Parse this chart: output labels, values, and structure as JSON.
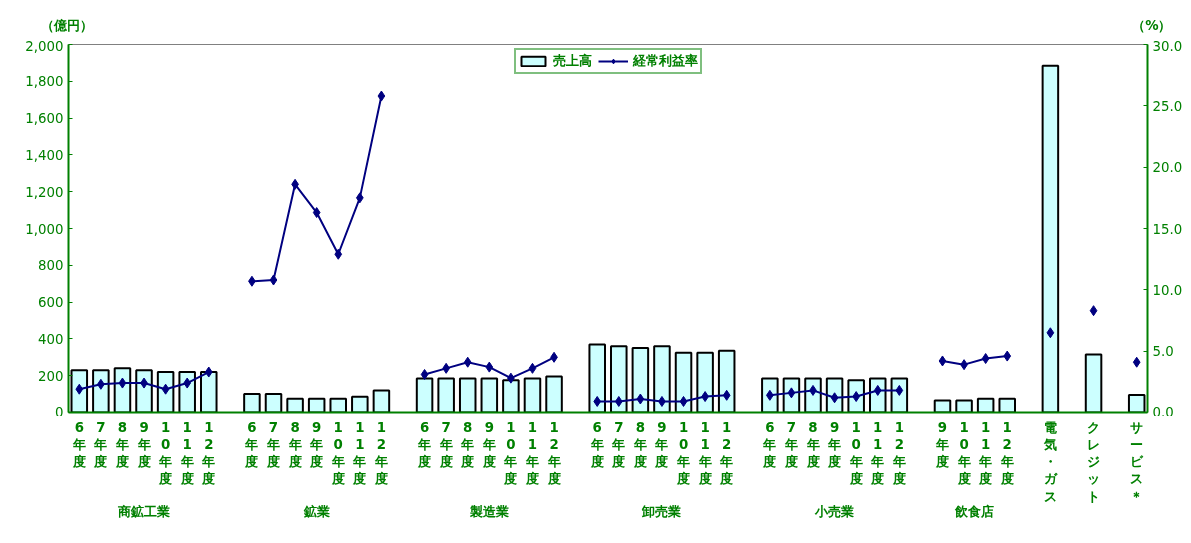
{
  "chart_data": {
    "type": "bar",
    "ylabel": "（億円）",
    "y2label": "（%）",
    "categories": [
      "6年度",
      "7年度",
      "8年度",
      "9年度",
      "10年度",
      "11年度",
      "12年度",
      null,
      "6年度",
      "7年度",
      "8年度",
      "9年度",
      "10年度",
      "11年度",
      "12年度",
      null,
      "6年度",
      "7年度",
      "8年度",
      "9年度",
      "10年度",
      "11年度",
      "12年度",
      null,
      "6年度",
      "7年度",
      "8年度",
      "9年度",
      "10年度",
      "11年度",
      "12年度",
      null,
      "6年度",
      "7年度",
      "8年度",
      "9年度",
      "10年度",
      "11年度",
      "12年度",
      null,
      "9年度",
      "10年度",
      "11年度",
      "12年度",
      null,
      "電気・ガス",
      null,
      "クレジット",
      null,
      "サービス＊"
    ],
    "series": [
      {
        "name": "売上高",
        "color": "#ccffff",
        "values": [
          230,
          230,
          240,
          230,
          220,
          220,
          220,
          null,
          100,
          100,
          75,
          75,
          75,
          85,
          120,
          null,
          185,
          185,
          185,
          185,
          175,
          185,
          195,
          null,
          370,
          360,
          350,
          360,
          325,
          325,
          335,
          null,
          185,
          185,
          185,
          185,
          175,
          185,
          185,
          null,
          65,
          65,
          75,
          75,
          null,
          1885,
          null,
          315,
          null,
          95
        ]
      },
      {
        "name": "経常利益率",
        "type": "line",
        "axis": "y2",
        "color": "#000080",
        "marker": "diamond",
        "values": [
          1.9,
          2.3,
          2.4,
          2.4,
          1.9,
          2.4,
          3.3,
          null,
          10.7,
          10.8,
          18.6,
          16.3,
          12.9,
          17.5,
          25.8,
          null,
          3.1,
          3.6,
          4.1,
          3.7,
          2.8,
          3.6,
          4.5,
          null,
          0.9,
          0.9,
          1.1,
          0.9,
          0.9,
          1.3,
          1.4,
          null,
          1.4,
          1.6,
          1.8,
          1.2,
          1.3,
          1.8,
          1.8,
          null,
          4.2,
          3.9,
          4.4,
          4.6,
          null,
          6.5,
          null,
          8.3,
          null,
          4.1
        ]
      }
    ],
    "ylim": [
      0,
      2000
    ],
    "yticks": [
      0,
      {
        "value": 200,
        "label": "200"
      },
      400,
      600,
      800,
      {
        "value": 1000,
        "label": "1,000"
      },
      {
        "value": 1200,
        "label": "1,200"
      },
      {
        "value": 1400,
        "label": "1,400"
      },
      {
        "value": 1600,
        "label": "1,600"
      },
      {
        "value": 1800,
        "label": "1,800"
      },
      {
        "value": 2000,
        "label": "2,000"
      }
    ],
    "y2lim": [
      0,
      30
    ],
    "y2ticks": [
      {
        "value": 0,
        "label": "0.0"
      },
      {
        "value": 5,
        "label": "5.0"
      },
      {
        "value": 10,
        "label": "10.0"
      },
      {
        "value": 15,
        "label": "15.0"
      },
      {
        "value": 20,
        "label": "20.0"
      },
      {
        "value": 25,
        "label": "25.0"
      },
      {
        "value": 30,
        "label": "30.0"
      }
    ],
    "annotations": [
      "商鉱工業",
      "鉱業",
      "製造業",
      "卸売業",
      "小売業",
      "飲食店"
    ],
    "legend": "top",
    "grid": false
  }
}
